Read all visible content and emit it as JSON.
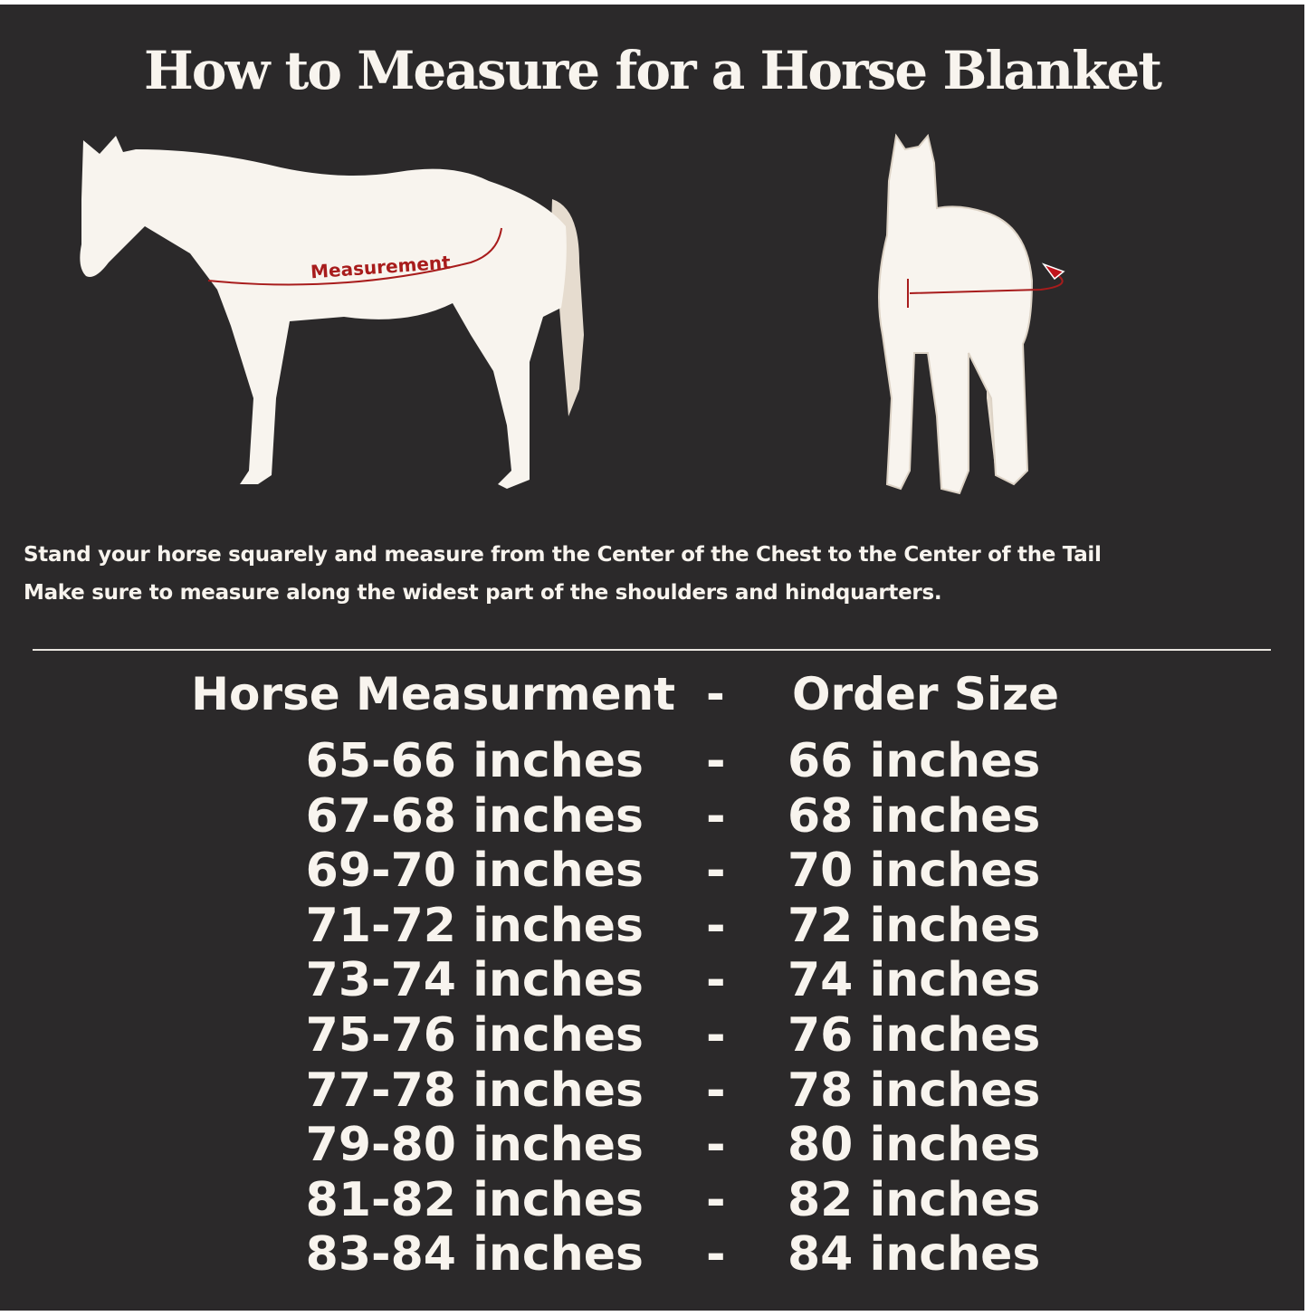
{
  "title": "How to Measure for a Horse Blanket",
  "side_view": {
    "label": "Measurement",
    "colors": {
      "horse": "#f8f4ee",
      "tail": "#e6dccf",
      "line": "#a81c1c"
    }
  },
  "front_view": {
    "icon": "wrap-around-arrow-icon"
  },
  "instructions": [
    "Stand your horse squarely and measure from the Center of the Chest to the Center of the Tail",
    "Make sure to measure along the widest part of the shoulders and hindquarters."
  ],
  "table": {
    "header": {
      "measurement": "Horse Measurment",
      "separator": "-",
      "size": "Order Size"
    },
    "rows": [
      {
        "measurement": "65-66 inches",
        "separator": "-",
        "size": "66 inches"
      },
      {
        "measurement": "67-68 inches",
        "separator": "-",
        "size": "68 inches"
      },
      {
        "measurement": "69-70 inches",
        "separator": "-",
        "size": "70 inches"
      },
      {
        "measurement": "71-72 inches",
        "separator": "-",
        "size": "72 inches"
      },
      {
        "measurement": "73-74 inches",
        "separator": "-",
        "size": "74 inches"
      },
      {
        "measurement": "75-76 inches",
        "separator": "-",
        "size": "76 inches"
      },
      {
        "measurement": "77-78 inches",
        "separator": "-",
        "size": "78 inches"
      },
      {
        "measurement": "79-80 inches",
        "separator": "-",
        "size": "80 inches"
      },
      {
        "measurement": "81-82 inches",
        "separator": "-",
        "size": "82 inches"
      },
      {
        "measurement": "83-84 inches",
        "separator": "-",
        "size": "84 inches"
      }
    ]
  },
  "colors": {
    "background": "#2b292a",
    "text": "#f8f4ee"
  }
}
